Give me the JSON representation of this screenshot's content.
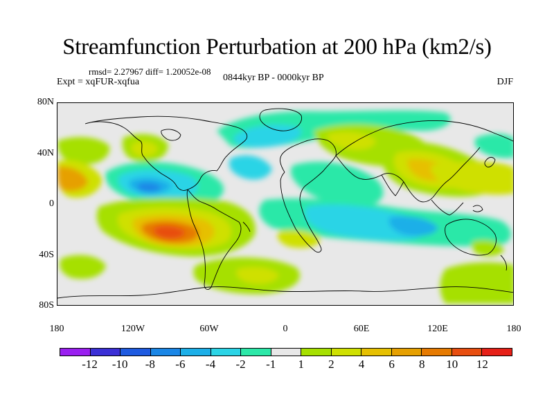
{
  "title": "Streamfunction Perturbation at 200 hPa (km2/s)",
  "stats": "rmsd= 2.27967 diff= 1.20052e-08",
  "experiment": "Expt = xqFUR-xqfua",
  "period": "0844kyr BP - 0000kyr BP",
  "season": "DJF",
  "map": {
    "projection": "cylindrical equidistant",
    "lat_labels": [
      "80N",
      "40N",
      "0",
      "40S",
      "80S"
    ],
    "lon_labels": [
      "180",
      "120W",
      "60W",
      "0",
      "60E",
      "120E",
      "180"
    ],
    "background_color": "#e8e8e8"
  },
  "colorbar": {
    "labels": [
      "-12",
      "-10",
      "-8",
      "-6",
      "-4",
      "-2",
      "-1",
      "1",
      "2",
      "4",
      "6",
      "8",
      "10",
      "12"
    ],
    "colors": [
      "#9a1ff0",
      "#3b2fd6",
      "#1e5ae0",
      "#1a86e6",
      "#1cafe8",
      "#2bd4e6",
      "#2ce8a8",
      "#e8e8e8",
      "#a6e000",
      "#cfe000",
      "#e6c000",
      "#e6a000",
      "#e67a00",
      "#e84e10",
      "#e62018"
    ]
  }
}
